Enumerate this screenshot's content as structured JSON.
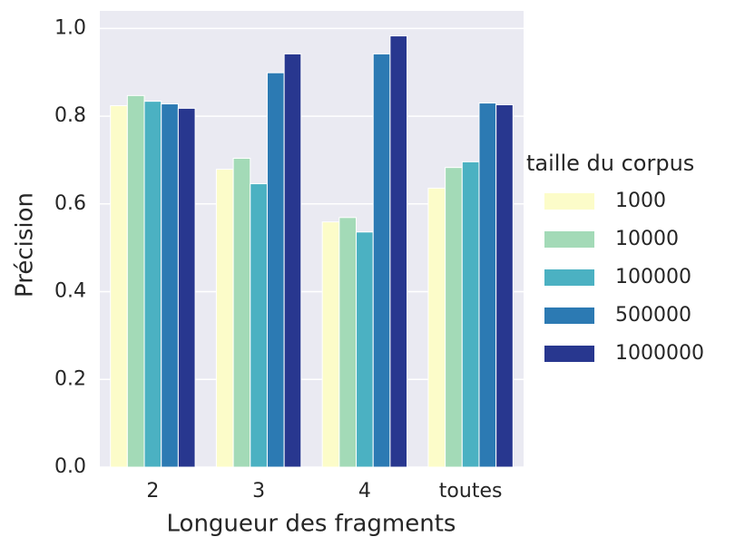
{
  "chart_data": {
    "type": "bar",
    "xlabel": "Longueur des fragments",
    "ylabel": "Précision",
    "legend_title": "taille du corpus",
    "legend": "right",
    "grid": true,
    "categories": [
      "2",
      "3",
      "4",
      "toutes"
    ],
    "series": [
      {
        "name": "1000",
        "color": "#fcfcc9",
        "values": [
          0.824,
          0.679,
          0.559,
          0.636
        ]
      },
      {
        "name": "10000",
        "color": "#a3dab7",
        "values": [
          0.847,
          0.704,
          0.569,
          0.683
        ]
      },
      {
        "name": "100000",
        "color": "#4bb1c2",
        "values": [
          0.834,
          0.646,
          0.536,
          0.696
        ]
      },
      {
        "name": "500000",
        "color": "#2c7ab3",
        "values": [
          0.828,
          0.899,
          0.942,
          0.83
        ]
      },
      {
        "name": "1000000",
        "color": "#28378f",
        "values": [
          0.818,
          0.942,
          0.983,
          0.826
        ]
      }
    ],
    "ylim": [
      0,
      1.04
    ],
    "yticks": [
      {
        "value": 0,
        "label": "0.0"
      },
      {
        "value": 0.2,
        "label": "0.2"
      },
      {
        "value": 0.4,
        "label": "0.4"
      },
      {
        "value": 0.6,
        "label": "0.6"
      },
      {
        "value": 0.8,
        "label": "0.8"
      },
      {
        "value": 1,
        "label": "1.0"
      }
    ]
  }
}
